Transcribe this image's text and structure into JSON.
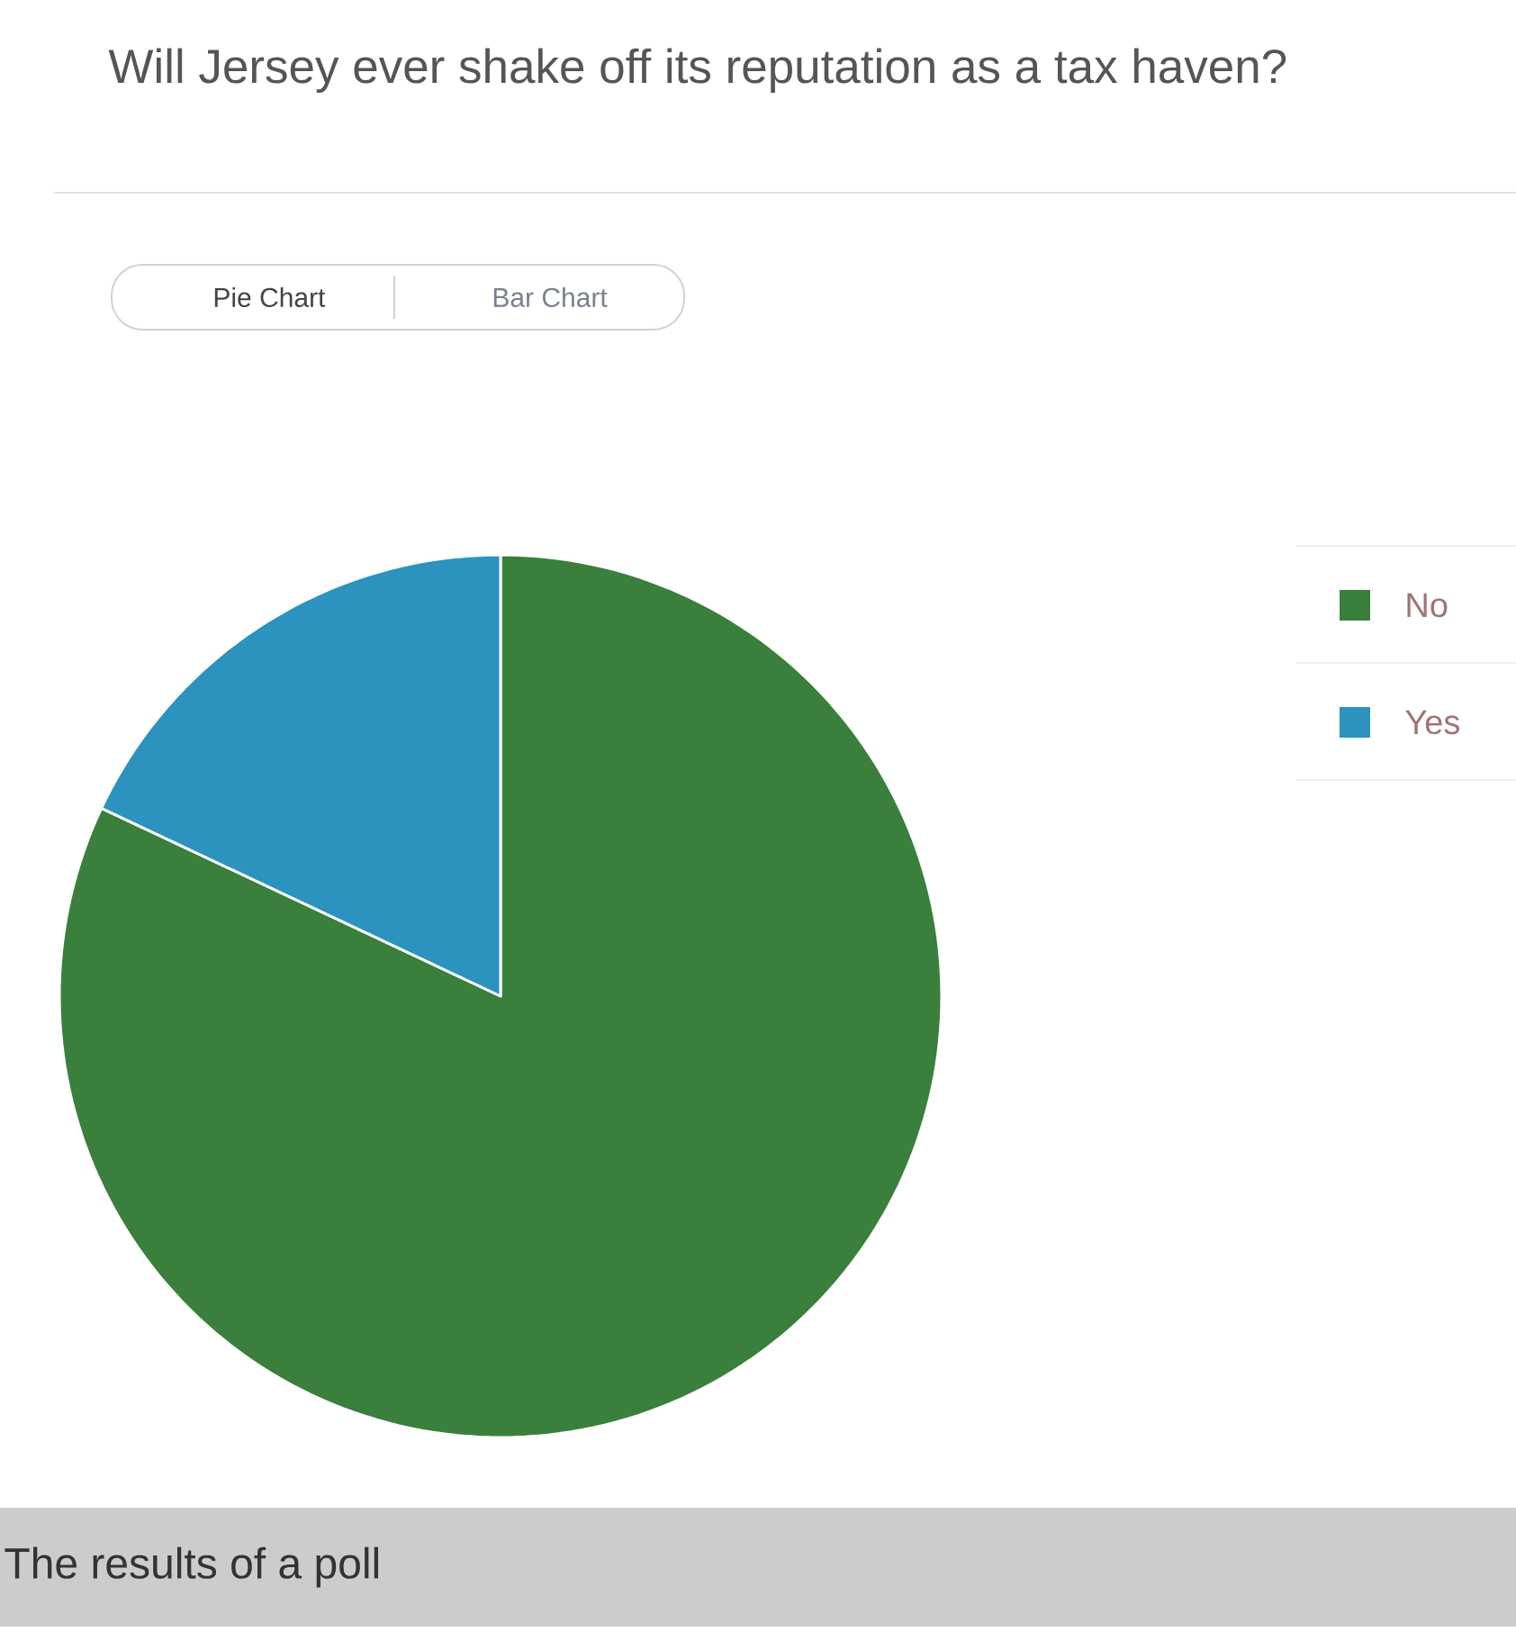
{
  "chart_data": {
    "type": "pie",
    "title": "Will Jersey ever shake off its reputation as a tax haven?",
    "categories": [
      "No",
      "Yes"
    ],
    "values": [
      82,
      18
    ],
    "colors": [
      "#3a7f3c",
      "#2b93bd"
    ],
    "legend": "top right",
    "annotations": [
      "Pie Chart",
      "Bar Chart",
      "The results of a poll"
    ]
  }
}
